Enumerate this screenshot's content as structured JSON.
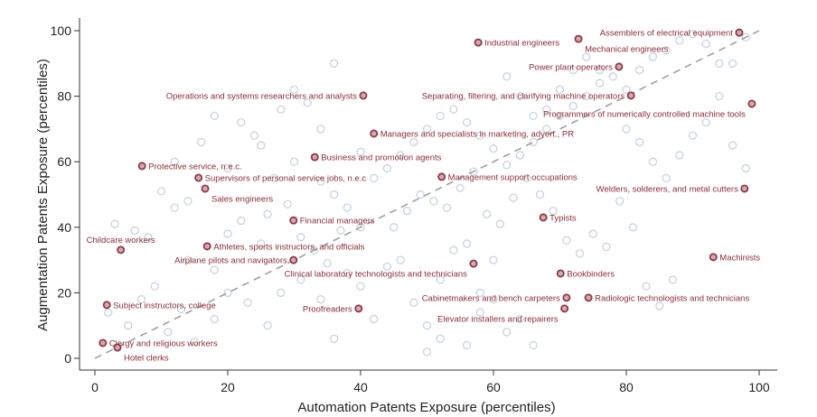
{
  "chart_data": {
    "type": "scatter",
    "xlabel": "Automation Patents Exposure (percentiles)",
    "ylabel": "Augmentation Patents Exposure (percentiles)",
    "xlim": [
      0,
      100
    ],
    "ylim": [
      0,
      100
    ],
    "xticks": [
      "0",
      "20",
      "40",
      "60",
      "80",
      "100"
    ],
    "yticks": [
      "0",
      "20",
      "40",
      "60",
      "80",
      "100"
    ],
    "reference_line": {
      "type": "45-degree",
      "style": "dashed"
    },
    "colors": {
      "highlight": "#8b3a46",
      "highlight_text": "#8b2d3a",
      "background_point": "#c9d3dd",
      "line": "#999999"
    },
    "labeled_points": [
      {
        "label": "Assemblers of electrical equipment",
        "x": 97.0,
        "y": 99.4,
        "pos": "left"
      },
      {
        "label": "Industrial engineers",
        "x": 57.7,
        "y": 96.4,
        "pos": "right"
      },
      {
        "label": "Mechanical engineers",
        "x": 72.8,
        "y": 97.5,
        "pos": "right"
      },
      {
        "label": "Power plant operators",
        "x": 78.9,
        "y": 89.0,
        "pos": "left"
      },
      {
        "label": "Operations and systems researchers and analysts",
        "x": 40.4,
        "y": 80.2,
        "pos": "left"
      },
      {
        "label": "Separating, filtering, and clarifying machine operators",
        "x": 80.7,
        "y": 80.2,
        "pos": "left"
      },
      {
        "label": "Programmers of numerically controlled machine tools",
        "x": 98.9,
        "y": 77.7,
        "pos": "left"
      },
      {
        "label": "Managers and specialists in marketing, advert., PR",
        "x": 42.0,
        "y": 68.6,
        "pos": "right"
      },
      {
        "label": "Business and promotion agents",
        "x": 33.1,
        "y": 61.4,
        "pos": "right"
      },
      {
        "label": "Protective service, n.e.c.",
        "x": 7.1,
        "y": 58.7,
        "pos": "right"
      },
      {
        "label": "Management support occupations",
        "x": 52.2,
        "y": 55.4,
        "pos": "right"
      },
      {
        "label": "Supervisors of personal service jobs, n.e.c",
        "x": 15.6,
        "y": 55.1,
        "pos": "right"
      },
      {
        "label": "Sales engineers",
        "x": 16.6,
        "y": 51.8,
        "pos": "right"
      },
      {
        "label": "Welders, solderers, and metal cutters",
        "x": 97.8,
        "y": 51.8,
        "pos": "left"
      },
      {
        "label": "Financial managers",
        "x": 29.9,
        "y": 42.1,
        "pos": "right"
      },
      {
        "label": "Typists",
        "x": 67.5,
        "y": 43.0,
        "pos": "right"
      },
      {
        "label": "Childcare workers",
        "x": 3.9,
        "y": 33.1,
        "pos": "top"
      },
      {
        "label": "Athletes, sports instructors, and officials",
        "x": 16.9,
        "y": 34.2,
        "pos": "right"
      },
      {
        "label": "Airplane pilots and navigators",
        "x": 29.9,
        "y": 30.0,
        "pos": "left"
      },
      {
        "label": "Clinical laboratory technologists and technicians",
        "x": 57.0,
        "y": 28.9,
        "pos": "left"
      },
      {
        "label": "Machinists",
        "x": 93.1,
        "y": 30.9,
        "pos": "right"
      },
      {
        "label": "Bookbinders",
        "x": 70.1,
        "y": 25.9,
        "pos": "right"
      },
      {
        "label": "Subject instructors, college",
        "x": 1.8,
        "y": 16.3,
        "pos": "right"
      },
      {
        "label": "Cabinetmakers and bench carpeters",
        "x": 71.0,
        "y": 18.5,
        "pos": "left"
      },
      {
        "label": "Radiologic technologists and technicians",
        "x": 74.3,
        "y": 18.5,
        "pos": "right"
      },
      {
        "label": "Elevator installers and repairers",
        "x": 70.7,
        "y": 15.2,
        "pos": "left"
      },
      {
        "label": "Proofreaders",
        "x": 39.7,
        "y": 15.2,
        "pos": "left"
      },
      {
        "label": "Clergy and religious workers",
        "x": 1.2,
        "y": 4.7,
        "pos": "right"
      },
      {
        "label": "Hotel clerks",
        "x": 3.4,
        "y": 3.3,
        "pos": "right"
      }
    ],
    "background_points": [
      [
        3,
        41
      ],
      [
        6,
        39
      ],
      [
        8,
        37
      ],
      [
        10,
        51
      ],
      [
        12,
        46
      ],
      [
        14,
        30
      ],
      [
        18,
        27
      ],
      [
        20,
        38
      ],
      [
        22,
        42
      ],
      [
        25,
        35
      ],
      [
        27,
        55
      ],
      [
        29,
        47
      ],
      [
        31,
        37
      ],
      [
        33,
        33
      ],
      [
        35,
        29
      ],
      [
        37,
        39
      ],
      [
        30,
        60
      ],
      [
        25,
        65
      ],
      [
        22,
        72
      ],
      [
        20,
        58
      ],
      [
        2,
        14
      ],
      [
        5,
        10
      ],
      [
        7,
        18
      ],
      [
        9,
        22
      ],
      [
        11,
        8
      ],
      [
        13,
        15
      ],
      [
        15,
        5
      ],
      [
        18,
        12
      ],
      [
        20,
        20
      ],
      [
        23,
        17
      ],
      [
        26,
        10
      ],
      [
        28,
        20
      ],
      [
        31,
        24
      ],
      [
        34,
        18
      ],
      [
        36,
        6
      ],
      [
        38,
        26
      ],
      [
        40,
        22
      ],
      [
        42,
        12
      ],
      [
        44,
        28
      ],
      [
        46,
        30
      ],
      [
        48,
        17
      ],
      [
        50,
        10
      ],
      [
        52,
        24
      ],
      [
        54,
        33
      ],
      [
        56,
        35
      ],
      [
        58,
        20
      ],
      [
        60,
        30
      ],
      [
        62,
        8
      ],
      [
        64,
        12
      ],
      [
        66,
        4
      ],
      [
        45,
        40
      ],
      [
        47,
        45
      ],
      [
        49,
        50
      ],
      [
        51,
        48
      ],
      [
        53,
        46
      ],
      [
        55,
        52
      ],
      [
        57,
        57
      ],
      [
        59,
        44
      ],
      [
        61,
        41
      ],
      [
        63,
        49
      ],
      [
        40,
        63
      ],
      [
        42,
        55
      ],
      [
        44,
        58
      ],
      [
        46,
        62
      ],
      [
        48,
        66
      ],
      [
        50,
        70
      ],
      [
        52,
        74
      ],
      [
        54,
        76
      ],
      [
        56,
        72
      ],
      [
        58,
        68
      ],
      [
        60,
        64
      ],
      [
        62,
        59
      ],
      [
        64,
        62
      ],
      [
        66,
        66
      ],
      [
        68,
        70
      ],
      [
        70,
        74
      ],
      [
        72,
        77
      ],
      [
        74,
        80
      ],
      [
        76,
        84
      ],
      [
        78,
        86
      ],
      [
        80,
        82
      ],
      [
        82,
        88
      ],
      [
        84,
        92
      ],
      [
        86,
        94
      ],
      [
        88,
        97
      ],
      [
        90,
        99
      ],
      [
        92,
        96
      ],
      [
        94,
        90
      ],
      [
        96,
        90
      ],
      [
        98,
        98
      ],
      [
        80,
        70
      ],
      [
        82,
        66
      ],
      [
        84,
        60
      ],
      [
        86,
        55
      ],
      [
        88,
        62
      ],
      [
        90,
        68
      ],
      [
        92,
        72
      ],
      [
        94,
        80
      ],
      [
        96,
        65
      ],
      [
        98,
        58
      ],
      [
        62,
        86
      ],
      [
        64,
        80
      ],
      [
        66,
        74
      ],
      [
        68,
        76
      ],
      [
        70,
        82
      ],
      [
        72,
        88
      ],
      [
        74,
        92
      ],
      [
        76,
        88
      ],
      [
        65,
        55
      ],
      [
        67,
        50
      ],
      [
        69,
        45
      ],
      [
        71,
        36
      ],
      [
        73,
        32
      ],
      [
        75,
        38
      ],
      [
        77,
        34
      ],
      [
        79,
        48
      ],
      [
        81,
        40
      ],
      [
        83,
        22
      ],
      [
        85,
        16
      ],
      [
        87,
        24
      ],
      [
        50,
        2
      ],
      [
        52,
        6
      ],
      [
        56,
        4
      ],
      [
        58,
        14
      ],
      [
        60,
        18
      ],
      [
        30,
        82
      ],
      [
        28,
        76
      ],
      [
        32,
        78
      ],
      [
        34,
        70
      ],
      [
        36,
        90
      ],
      [
        24,
        68
      ],
      [
        18,
        74
      ],
      [
        16,
        66
      ],
      [
        12,
        60
      ],
      [
        14,
        48
      ],
      [
        40,
        40
      ],
      [
        38,
        46
      ],
      [
        36,
        50
      ],
      [
        34,
        54
      ],
      [
        26,
        44
      ]
    ]
  }
}
